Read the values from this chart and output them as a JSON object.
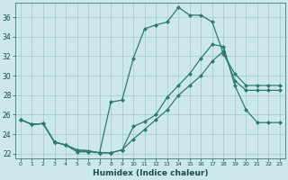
{
  "xlabel": "Humidex (Indice chaleur)",
  "ylabel": "",
  "background_color": "#cce8ec",
  "grid_color": "#aaccd0",
  "line_color": "#2d7a72",
  "xlim": [
    -0.5,
    23.5
  ],
  "ylim": [
    21.5,
    37.5
  ],
  "xticks": [
    0,
    1,
    2,
    3,
    4,
    5,
    6,
    7,
    8,
    9,
    10,
    11,
    12,
    13,
    14,
    15,
    16,
    17,
    18,
    19,
    20,
    21,
    22,
    23
  ],
  "yticks": [
    22,
    24,
    26,
    28,
    30,
    32,
    34,
    36
  ],
  "curve1_x": [
    0,
    1,
    2,
    3,
    4,
    5,
    6,
    7,
    8,
    9,
    10,
    11,
    12,
    13,
    14,
    15,
    16,
    17,
    18,
    19,
    20,
    21,
    22,
    23
  ],
  "curve1_y": [
    25.5,
    25.0,
    25.1,
    23.2,
    22.9,
    22.2,
    22.2,
    22.1,
    27.3,
    27.5,
    31.8,
    34.8,
    35.2,
    35.5,
    37.0,
    36.2,
    36.2,
    35.5,
    32.2,
    30.2,
    29.0,
    29.0,
    29.0,
    29.0
  ],
  "curve2_x": [
    0,
    1,
    2,
    3,
    4,
    5,
    6,
    7,
    8,
    9,
    10,
    11,
    12,
    13,
    14,
    15,
    16,
    17,
    18,
    19,
    20,
    21,
    22,
    23
  ],
  "curve2_y": [
    25.5,
    25.0,
    25.1,
    23.2,
    22.9,
    22.4,
    22.3,
    22.1,
    22.1,
    22.4,
    24.8,
    25.3,
    26.0,
    27.8,
    29.0,
    30.2,
    31.8,
    33.2,
    33.0,
    29.0,
    26.5,
    25.2,
    25.2,
    25.2
  ],
  "curve3_x": [
    0,
    1,
    2,
    3,
    4,
    5,
    6,
    7,
    8,
    9,
    10,
    11,
    12,
    13,
    14,
    15,
    16,
    17,
    18,
    19,
    20,
    21,
    22,
    23
  ],
  "curve3_y": [
    25.5,
    25.0,
    25.1,
    23.2,
    22.9,
    22.4,
    22.3,
    22.1,
    22.1,
    22.4,
    23.5,
    24.5,
    25.5,
    26.5,
    28.0,
    29.0,
    30.0,
    31.5,
    32.5,
    29.5,
    28.5,
    28.5,
    28.5,
    28.5
  ]
}
